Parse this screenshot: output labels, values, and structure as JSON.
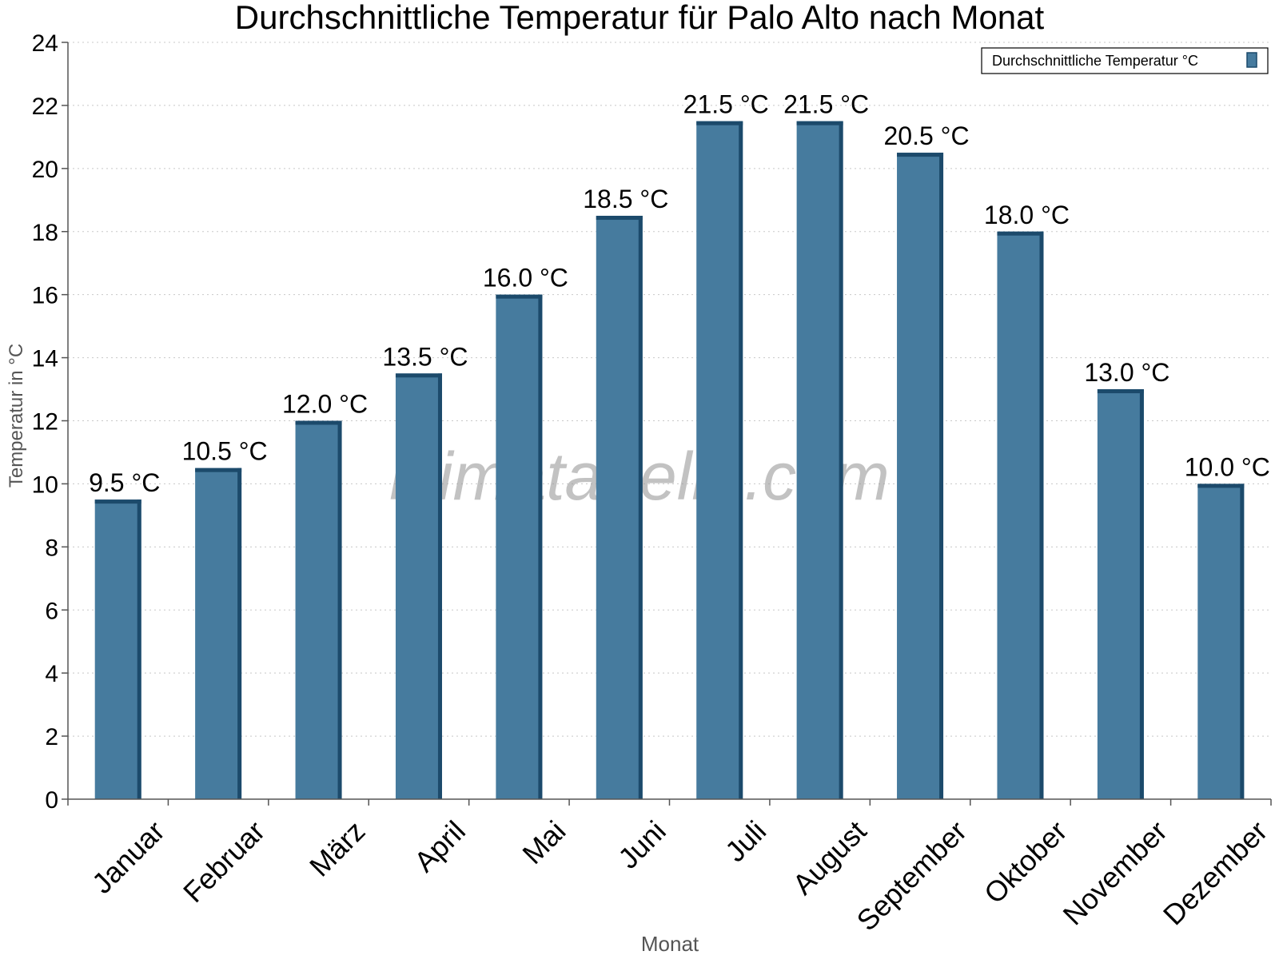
{
  "chart_data": {
    "type": "bar",
    "title": "Durchschnittliche Temperatur für Palo Alto nach Monat",
    "xlabel": "Monat",
    "ylabel": "Temperatur in °C",
    "categories": [
      "Januar",
      "Februar",
      "März",
      "April",
      "Mai",
      "Juni",
      "Juli",
      "August",
      "September",
      "Oktober",
      "November",
      "Dezember"
    ],
    "series": [
      {
        "name": "Durchschnittliche Temperatur °C",
        "values": [
          9.5,
          10.5,
          12.0,
          13.5,
          16.0,
          18.5,
          21.5,
          21.5,
          20.5,
          18.0,
          13.0,
          10.0
        ]
      }
    ],
    "data_labels": [
      "9.5 °C",
      "10.5 °C",
      "12.0 °C",
      "13.5 °C",
      "16.0 °C",
      "18.5 °C",
      "21.5 °C",
      "21.5 °C",
      "20.5 °C",
      "18.0 °C",
      "13.0 °C",
      "10.0 °C"
    ],
    "ylim": [
      0,
      24
    ],
    "yticks": [
      0,
      2,
      4,
      6,
      8,
      10,
      12,
      14,
      16,
      18,
      20,
      22,
      24
    ],
    "grid": true,
    "legend_position": "top-right",
    "watermark": "klimatabelle.com",
    "colors": {
      "bar": "#467b9e",
      "bar_edge": "#1c4a6b",
      "grid": "#c8c8c8",
      "axis": "#555555"
    }
  }
}
